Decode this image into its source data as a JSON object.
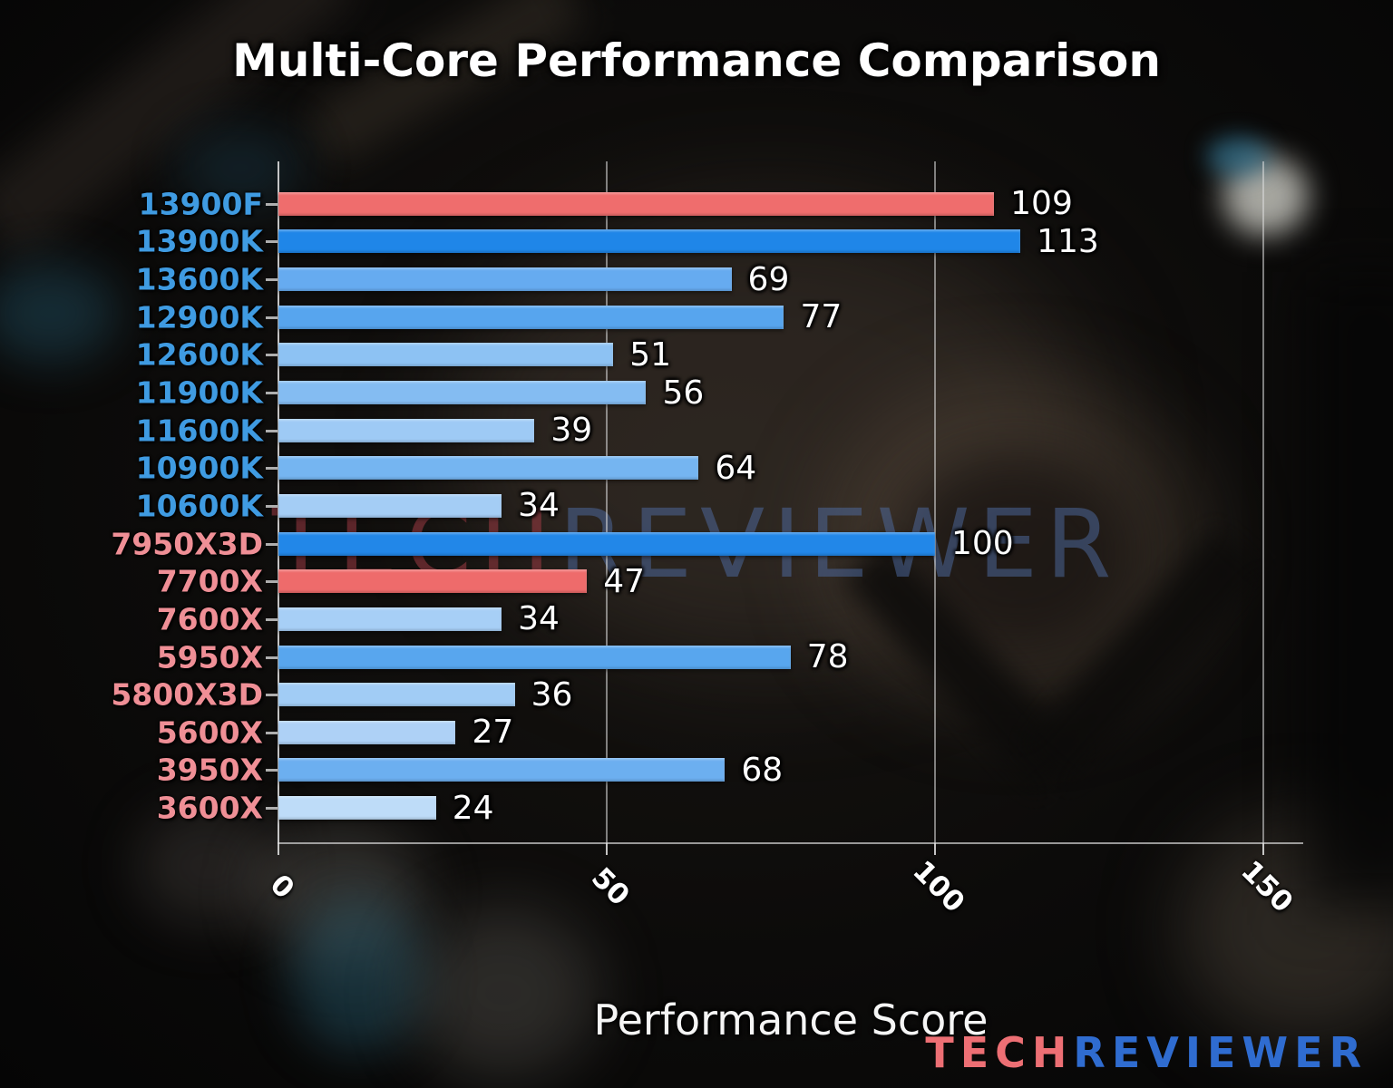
{
  "title": "Multi-Core Performance Comparison",
  "xlabel": "Performance Score",
  "watermark": {
    "tech": "TECH",
    "reviewer": "REVIEWER"
  },
  "logo": {
    "tech": "TECH",
    "reviewer": "REVIEWER",
    "tech_color": "#ed6f74",
    "reviewer_color": "#2f6cd0"
  },
  "colors": {
    "intel_label": "#3f9be2",
    "amd_label": "#ef8f96",
    "highlight_red_bar": "#ee6b6b",
    "grid": "rgba(222,222,222,0.55)"
  },
  "chart_data": {
    "type": "bar",
    "orientation": "horizontal",
    "title": "Multi-Core Performance Comparison",
    "xlabel": "Performance Score",
    "xlim": [
      0,
      156
    ],
    "xticks": [
      0,
      50,
      100,
      150
    ],
    "grid": true,
    "value_labels_shown": true,
    "bars": [
      {
        "label": "13900F",
        "value": 109,
        "bar_color": "#ef6d6d",
        "label_color": "#3f9be2"
      },
      {
        "label": "13900K",
        "value": 113,
        "bar_color": "#1f86e8",
        "label_color": "#3f9be2"
      },
      {
        "label": "13600K",
        "value": 69,
        "bar_color": "#66abf0",
        "label_color": "#3f9be2"
      },
      {
        "label": "12900K",
        "value": 77,
        "bar_color": "#57a5ee",
        "label_color": "#3f9be2"
      },
      {
        "label": "12600K",
        "value": 51,
        "bar_color": "#8dc2f3",
        "label_color": "#3f9be2"
      },
      {
        "label": "11900K",
        "value": 56,
        "bar_color": "#84bcf2",
        "label_color": "#3f9be2"
      },
      {
        "label": "11600K",
        "value": 39,
        "bar_color": "#9ecaf5",
        "label_color": "#3f9be2"
      },
      {
        "label": "10900K",
        "value": 64,
        "bar_color": "#75b5f1",
        "label_color": "#3f9be2"
      },
      {
        "label": "10600K",
        "value": 34,
        "bar_color": "#a4cdf5",
        "label_color": "#3f9be2"
      },
      {
        "label": "7950X3D",
        "value": 100,
        "bar_color": "#2287e8",
        "label_color": "#ef8f96"
      },
      {
        "label": "7700X",
        "value": 47,
        "bar_color": "#ee6b6b",
        "label_color": "#ef8f96"
      },
      {
        "label": "7600X",
        "value": 34,
        "bar_color": "#a7cff6",
        "label_color": "#ef8f96"
      },
      {
        "label": "5950X",
        "value": 78,
        "bar_color": "#58a6ee",
        "label_color": "#ef8f96"
      },
      {
        "label": "5800X3D",
        "value": 36,
        "bar_color": "#a1ccf5",
        "label_color": "#ef8f96"
      },
      {
        "label": "5600X",
        "value": 27,
        "bar_color": "#aed1f6",
        "label_color": "#ef8f96"
      },
      {
        "label": "3950X",
        "value": 68,
        "bar_color": "#6caff0",
        "label_color": "#ef8f96"
      },
      {
        "label": "3600X",
        "value": 24,
        "bar_color": "#bedcf8",
        "label_color": "#ef8f96"
      }
    ]
  }
}
